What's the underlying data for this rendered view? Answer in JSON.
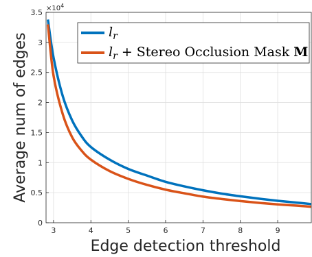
{
  "chart_data": {
    "type": "line",
    "xlabel": "Edge detection threshold",
    "ylabel": "Average num of edges",
    "y_exponent": "×10",
    "y_exponent_power": "4",
    "xlim": [
      2.8,
      9.9
    ],
    "ylim": [
      0,
      35000
    ],
    "grid": true,
    "legend_position": "top-right",
    "x_ticks": [
      3,
      4,
      5,
      6,
      7,
      8,
      9
    ],
    "x_tick_labels": [
      "3",
      "4",
      "5",
      "6",
      "7",
      "8",
      "9"
    ],
    "y_ticks": [
      0,
      5000,
      10000,
      15000,
      20000,
      25000,
      30000,
      35000
    ],
    "y_tick_labels": [
      "0",
      "0.5",
      "1",
      "1.5",
      "2",
      "2.5",
      "3",
      "3.5"
    ],
    "x": [
      2.85,
      3.0,
      3.25,
      3.5,
      3.75,
      4.0,
      4.5,
      5.0,
      5.5,
      6.0,
      6.5,
      7.0,
      7.5,
      8.0,
      8.5,
      9.0,
      9.5,
      9.9
    ],
    "series": [
      {
        "name_parts": [
          "l",
          "r",
          "",
          ""
        ],
        "color": "#0072BD",
        "values": [
          33800,
          27500,
          21000,
          17000,
          14400,
          12600,
          10500,
          8950,
          7850,
          6800,
          6050,
          5400,
          4850,
          4400,
          4000,
          3650,
          3350,
          3100
        ]
      },
      {
        "name_parts": [
          "l",
          "r",
          " + Stereo Occlusion Mask ",
          "M"
        ],
        "color": "#D95319",
        "values": [
          33000,
          24500,
          18000,
          14200,
          12000,
          10500,
          8600,
          7300,
          6300,
          5500,
          4900,
          4350,
          3950,
          3600,
          3300,
          3050,
          2850,
          2650
        ]
      }
    ]
  }
}
